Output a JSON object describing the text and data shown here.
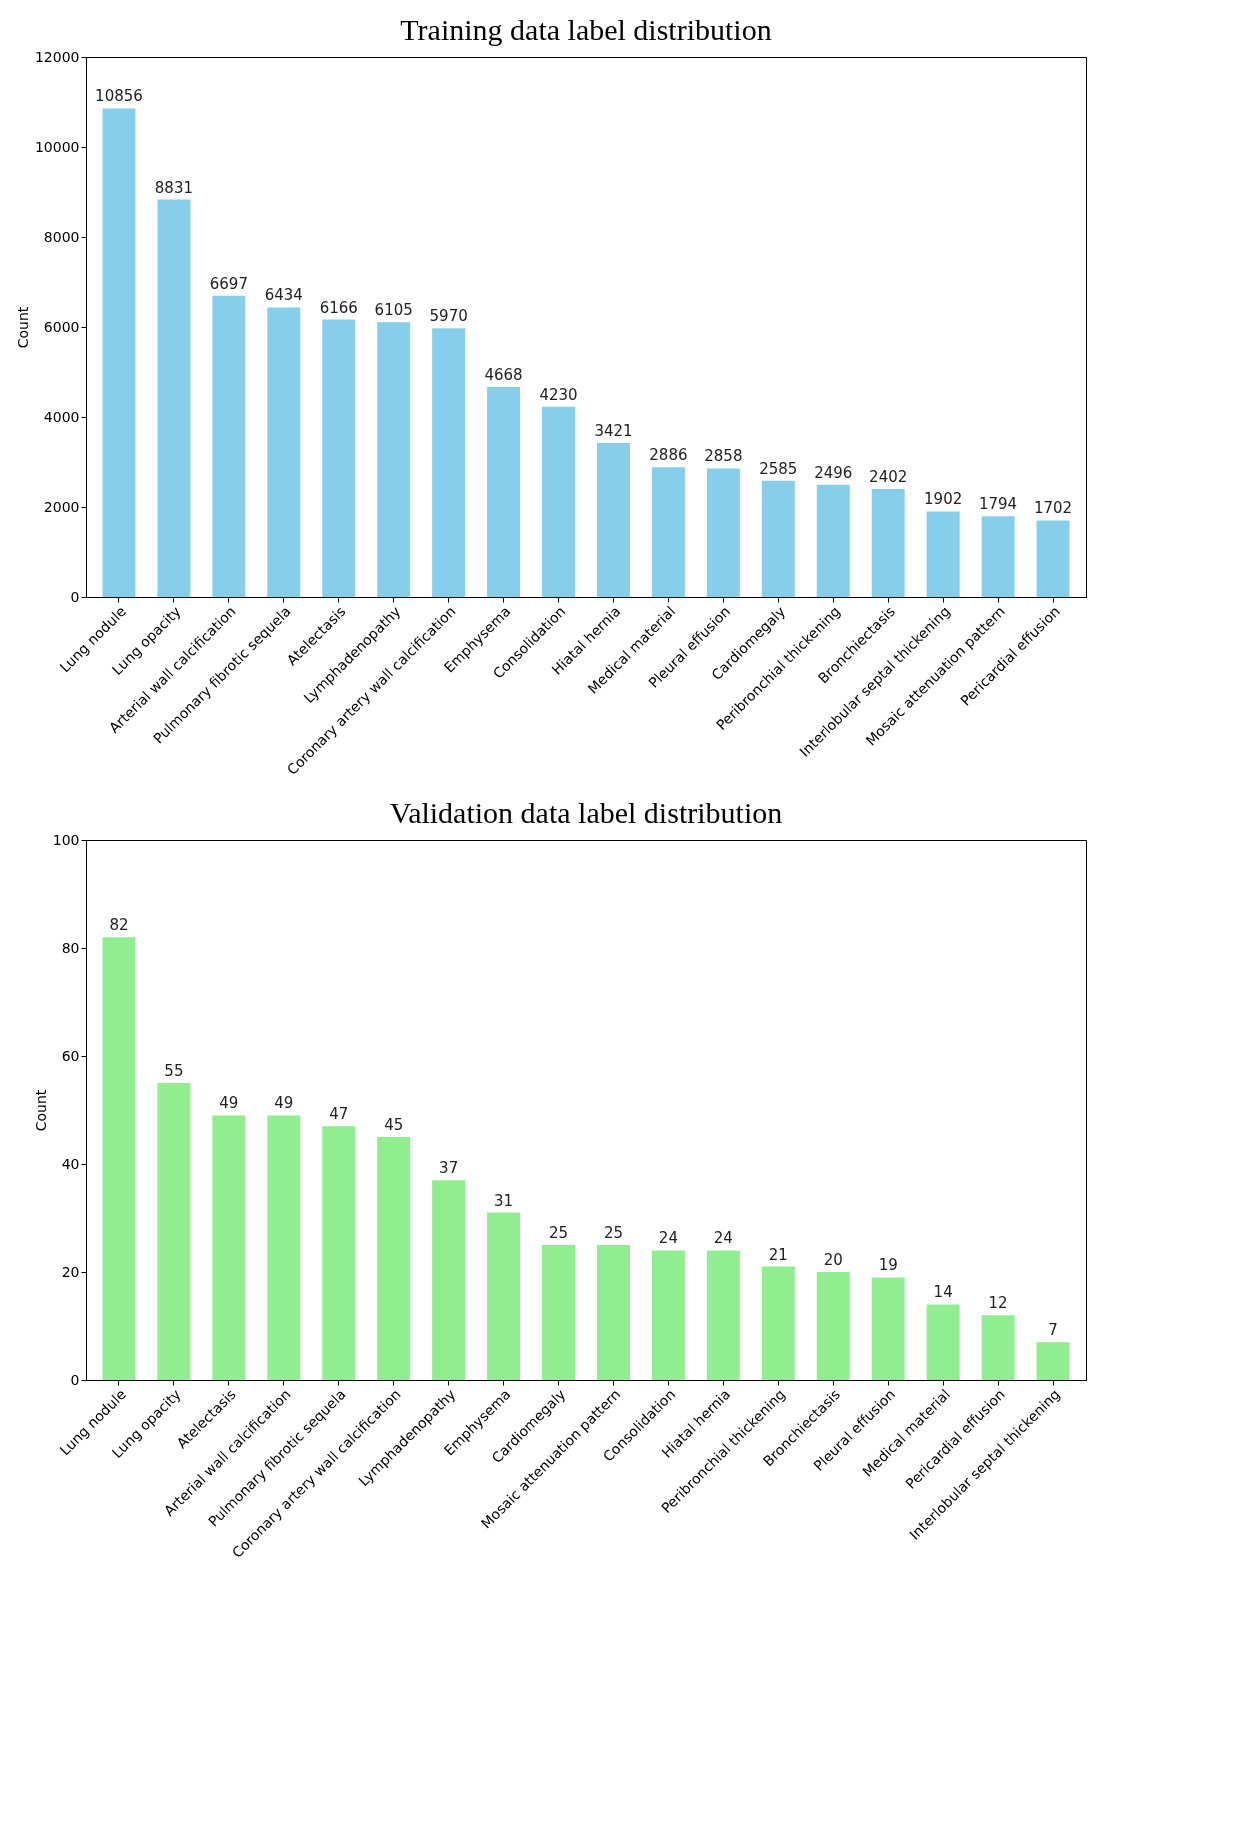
{
  "chart_data": [
    {
      "type": "bar",
      "title": "Training data label distribution",
      "ylabel": "Count",
      "categories": [
        "Lung nodule",
        "Lung opacity",
        "Arterial wall calcification",
        "Pulmonary fibrotic sequela",
        "Atelectasis",
        "Lymphadenopathy",
        "Coronary artery wall calcification",
        "Emphysema",
        "Consolidation",
        "Hiatal hernia",
        "Medical material",
        "Pleural effusion",
        "Cardiomegaly",
        "Peribronchial thickening",
        "Bronchiectasis",
        "Interlobular septal thickening",
        "Mosaic attenuation pattern",
        "Pericardial effusion"
      ],
      "values": [
        10856,
        8831,
        6697,
        6434,
        6166,
        6105,
        5970,
        4668,
        4230,
        3421,
        2886,
        2858,
        2585,
        2496,
        2402,
        1902,
        1794,
        1702
      ],
      "color": "#87ceeb",
      "ylim": [
        0,
        12000
      ],
      "yticks": [
        0,
        2000,
        4000,
        6000,
        8000,
        10000,
        12000
      ],
      "data_labels": true,
      "grid": false
    },
    {
      "type": "bar",
      "title": "Validation data label distribution",
      "ylabel": "Count",
      "categories": [
        "Lung nodule",
        "Lung opacity",
        "Atelectasis",
        "Arterial wall calcification",
        "Pulmonary fibrotic sequela",
        "Coronary artery wall calcification",
        "Lymphadenopathy",
        "Emphysema",
        "Cardiomegaly",
        "Mosaic attenuation pattern",
        "Consolidation",
        "Hiatal hernia",
        "Peribronchial thickening",
        "Bronchiectasis",
        "Pleural effusion",
        "Medical material",
        "Pericardial effusion",
        "Interlobular septal thickening"
      ],
      "values": [
        82,
        55,
        49,
        49,
        47,
        45,
        37,
        31,
        25,
        25,
        24,
        24,
        21,
        20,
        19,
        14,
        12,
        7
      ],
      "color": "#90ee90",
      "ylim": [
        0,
        100
      ],
      "yticks": [
        0,
        20,
        40,
        60,
        80,
        100
      ],
      "data_labels": true,
      "grid": false
    }
  ]
}
